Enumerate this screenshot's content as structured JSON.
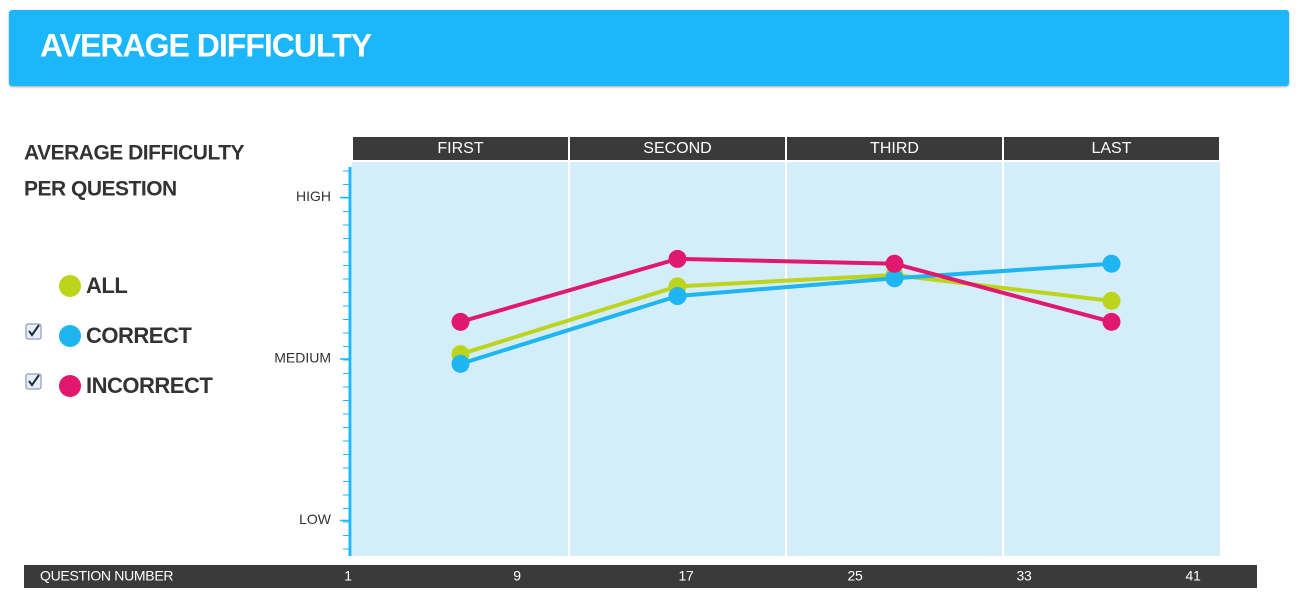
{
  "header": {
    "title": "AVERAGE DIFFICULTY"
  },
  "chart_data": {
    "type": "line",
    "title": [
      "AVERAGE DIFFICULTY",
      "PER QUESTION"
    ],
    "categories": [
      "FIRST",
      "SECOND",
      "THIRD",
      "LAST"
    ],
    "ylim": [
      -0.22,
      2.22
    ],
    "yticks": [
      {
        "value": 0,
        "label": "LOW"
      },
      {
        "value": 1,
        "label": "MEDIUM"
      },
      {
        "value": 2,
        "label": "HIGH"
      }
    ],
    "series": [
      {
        "name": "ALL",
        "color": "#bcd41c",
        "values": [
          1.03,
          1.45,
          1.52,
          1.36
        ]
      },
      {
        "name": "CORRECT",
        "color": "#1fb5f0",
        "values": [
          0.97,
          1.39,
          1.5,
          1.59
        ],
        "checked": true
      },
      {
        "name": "INCORRECT",
        "color": "#e0196f",
        "values": [
          1.23,
          1.62,
          1.59,
          1.23
        ],
        "checked": true
      }
    ],
    "question_axis": {
      "label": "QUESTION NUMBER",
      "xlim": [
        1,
        41
      ],
      "xticks": [
        1,
        9,
        17,
        25,
        33,
        41
      ]
    }
  }
}
